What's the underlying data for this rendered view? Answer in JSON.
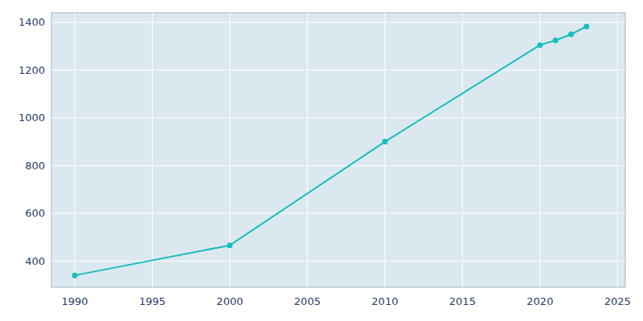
{
  "chart_data": {
    "type": "line",
    "x": [
      1990,
      2000,
      2010,
      2020,
      2021,
      2022,
      2023
    ],
    "values": [
      340,
      466,
      900,
      1305,
      1325,
      1350,
      1383
    ],
    "color": "#17bebb",
    "marker": "circle",
    "xlim": [
      1988.5,
      2025.5
    ],
    "ylim": [
      290,
      1440
    ],
    "xticks": [
      1990,
      1995,
      2000,
      2005,
      2010,
      2015,
      2020,
      2025
    ],
    "yticks": [
      400,
      600,
      800,
      1000,
      1200,
      1400
    ],
    "grid": true
  }
}
